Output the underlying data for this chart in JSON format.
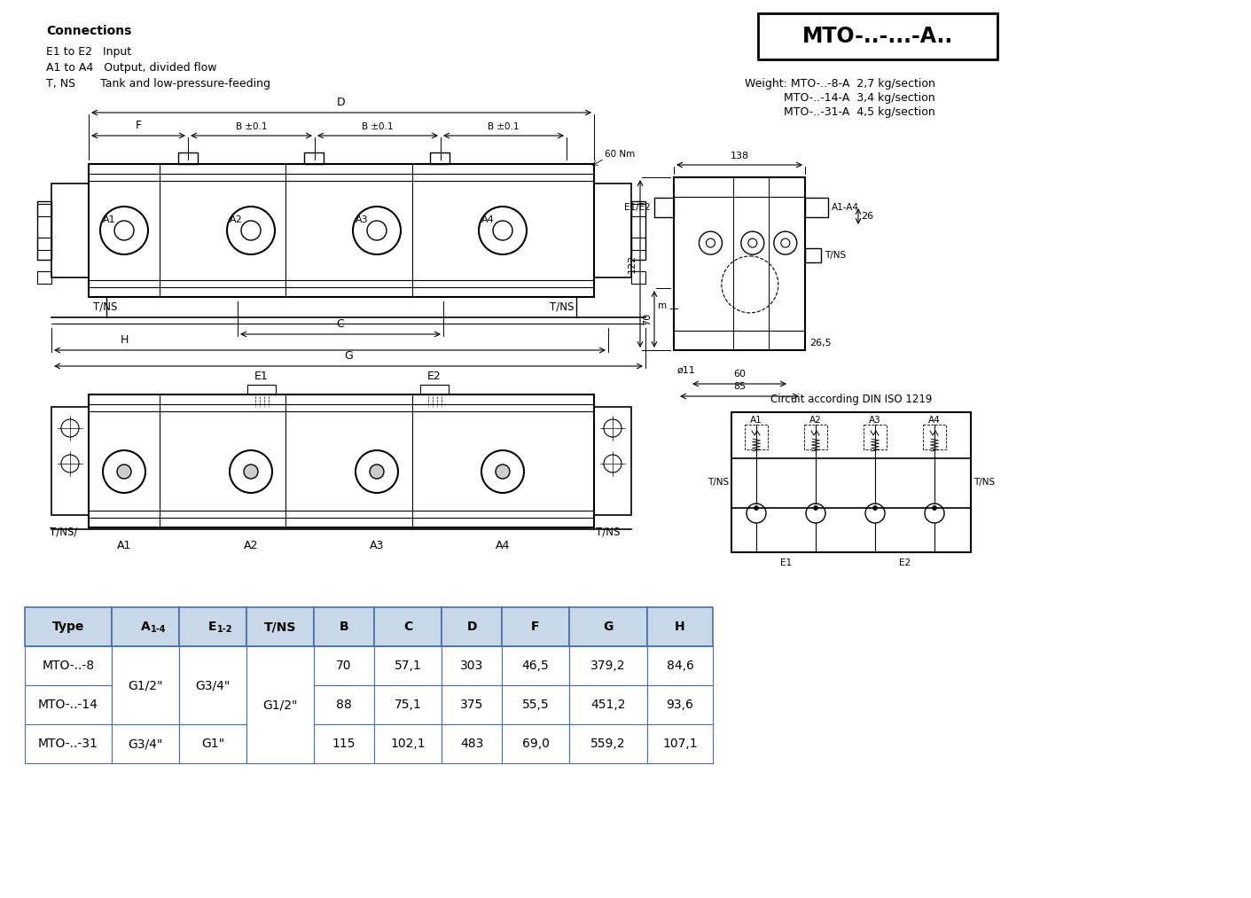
{
  "title": "MTO-..-...-A..",
  "connections_header": "Connections",
  "connections": [
    "E1 to E2   Input",
    "A1 to A4   Output, divided flow",
    "T, NS       Tank and low-pressure-feeding"
  ],
  "weight_lines": [
    "Weight: MTO-..-8-A  2,7 kg/section",
    "           MTO-..-14-A  3,4 kg/section",
    "           MTO-..-31-A  4,5 kg/section"
  ],
  "table_headers": [
    "Type",
    "A1-4",
    "E1-2",
    "T/NS",
    "B",
    "C",
    "D",
    "F",
    "G",
    "H"
  ],
  "table_rows": [
    [
      "MTO-..-8",
      "G1/2\"",
      "G3/4\"",
      "",
      "70",
      "57,1",
      "303",
      "46,5",
      "379,2",
      "84,6"
    ],
    [
      "MTO-..-14",
      "G1/2\"",
      "G3/4\"",
      "G1/2\"",
      "88",
      "75,1",
      "375",
      "55,5",
      "451,2",
      "93,6"
    ],
    [
      "MTO-..-31",
      "G3/4\"",
      "G1\"",
      "",
      "115",
      "102,1",
      "483",
      "69,0",
      "559,2",
      "107,1"
    ]
  ],
  "bg_color": "#ffffff",
  "table_header_bg": "#c8d8e8",
  "table_border": "#4a6fa5"
}
